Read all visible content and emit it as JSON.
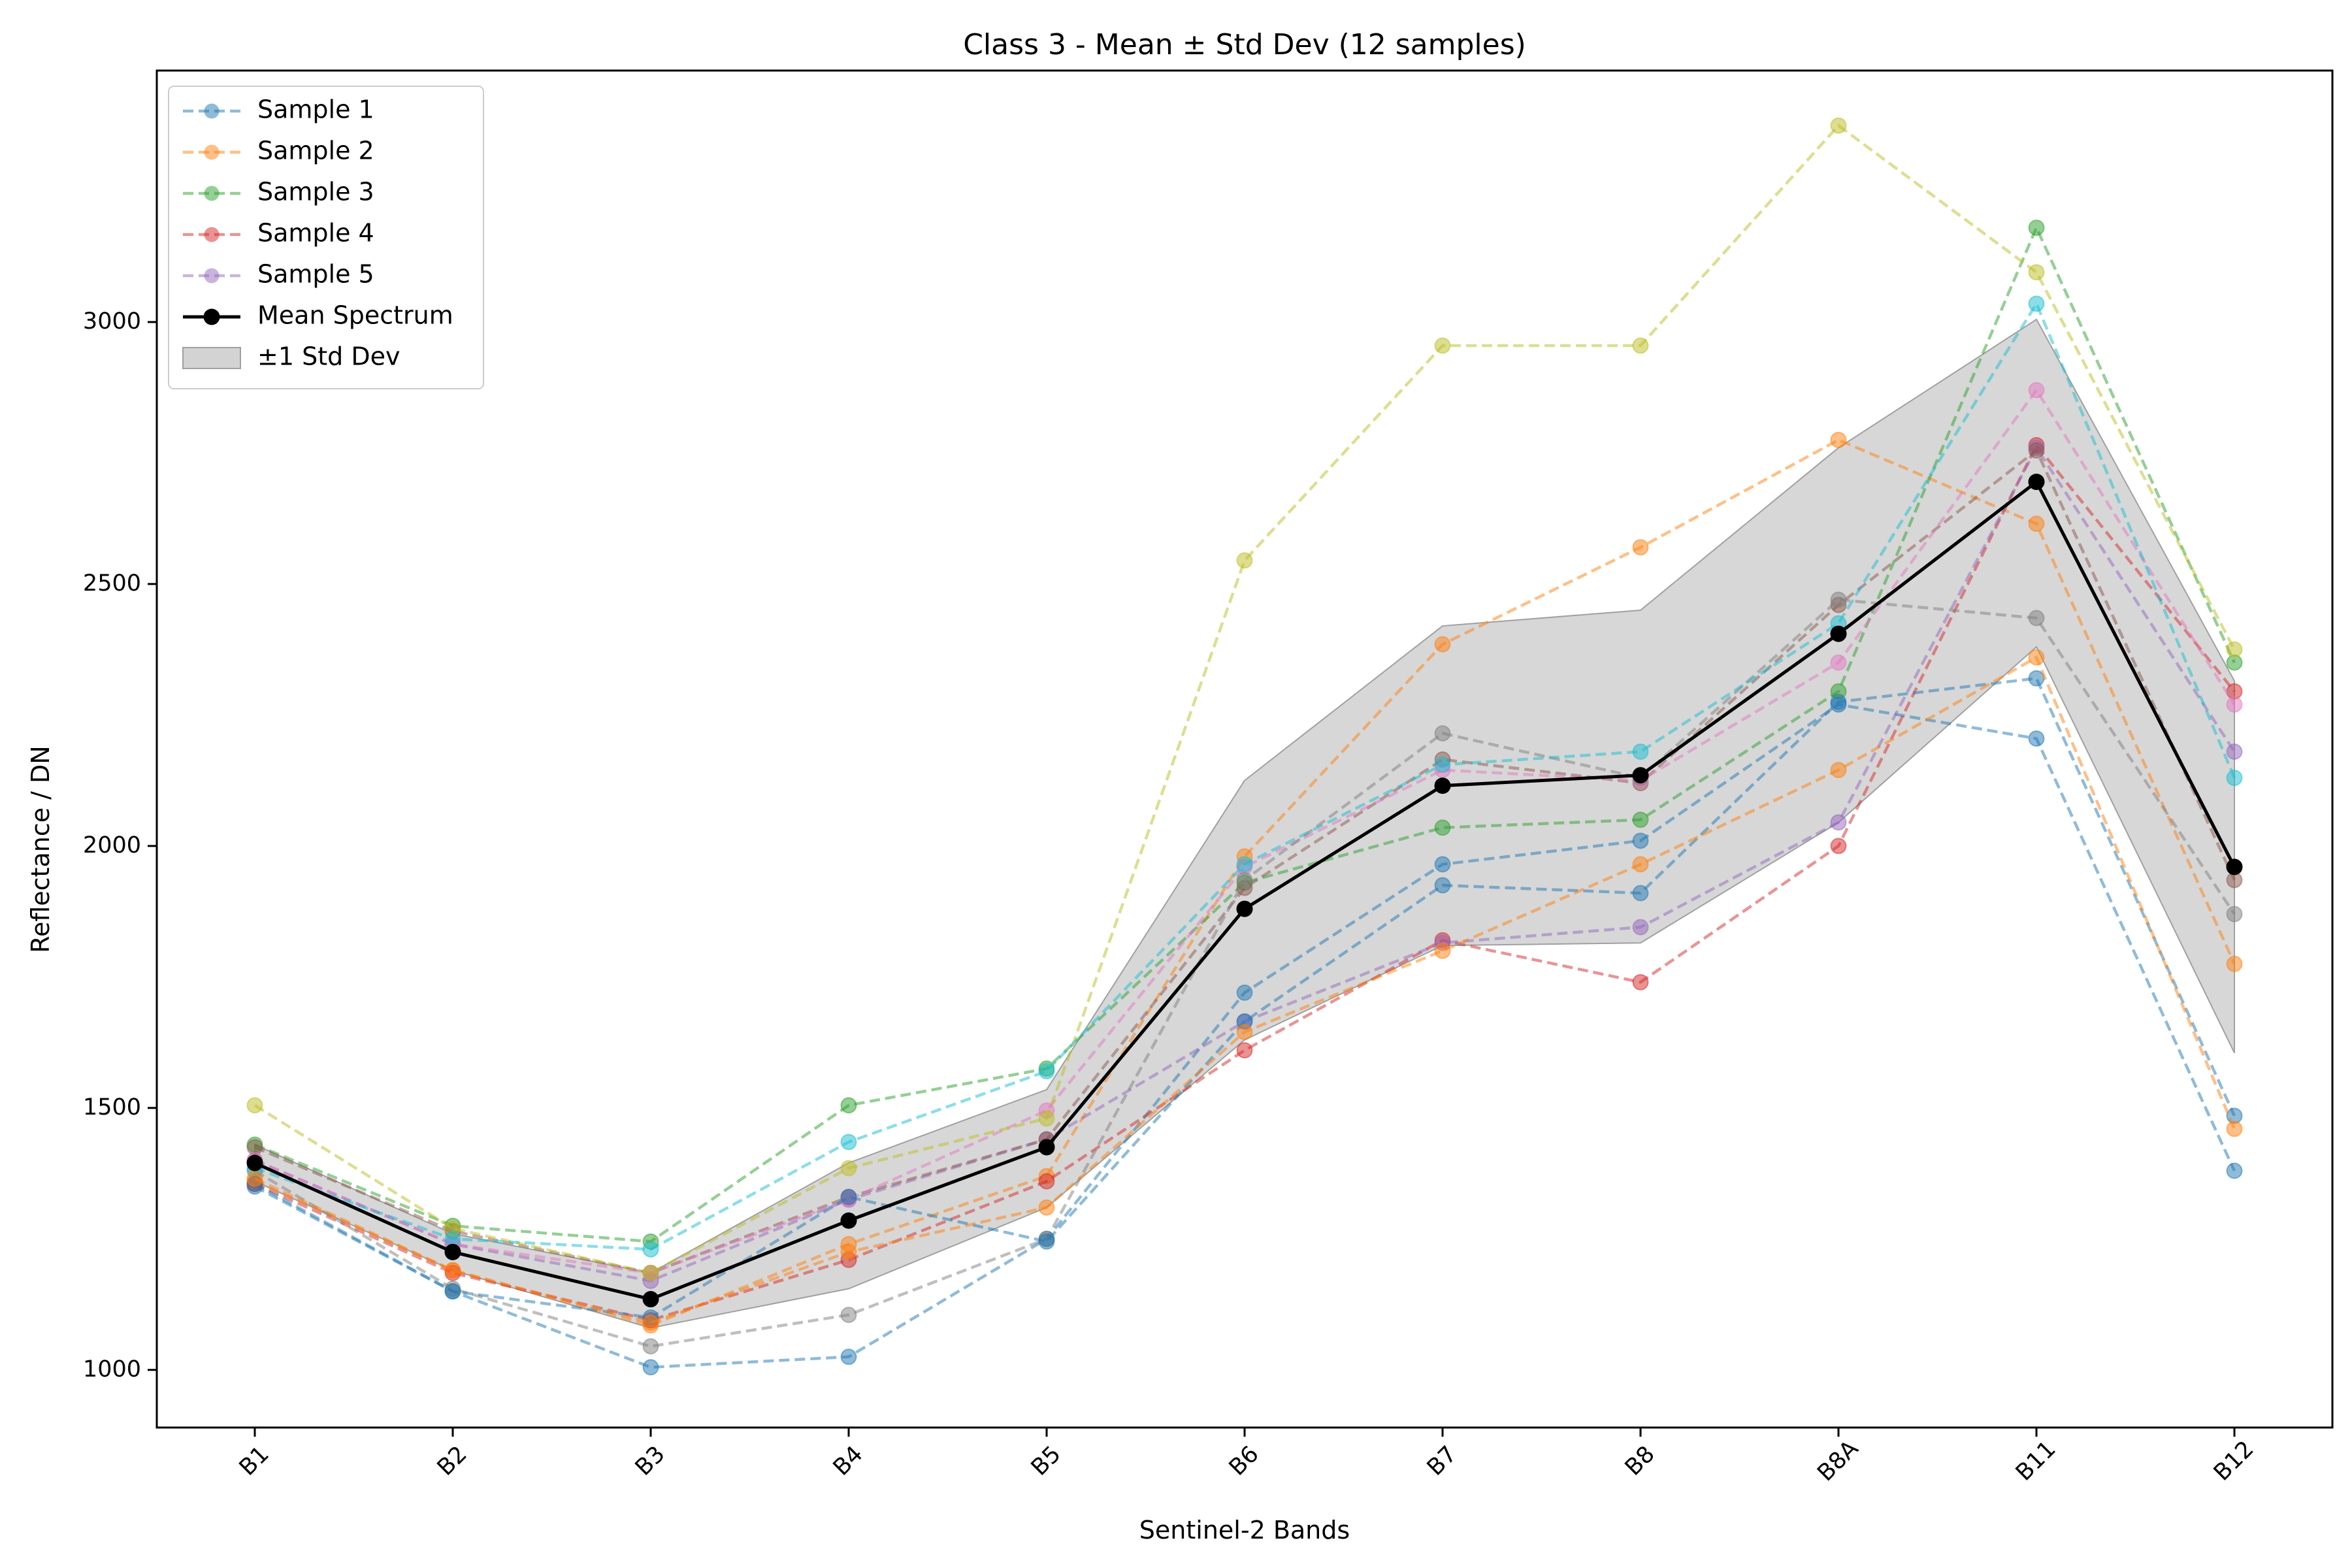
{
  "chart_data": {
    "type": "line",
    "title": "Class 3 - Mean ± Std Dev (12 samples)",
    "xlabel": "Sentinel-2 Bands",
    "ylabel": "Reflectance / DN",
    "categories": [
      "B1",
      "B2",
      "B3",
      "B4",
      "B5",
      "B6",
      "B7",
      "B8",
      "B8A",
      "B11",
      "B12"
    ],
    "yticks": [
      "1000",
      "1500",
      "2000",
      "2500",
      "3000"
    ],
    "ylim": [
      890,
      3480
    ],
    "grid": false,
    "legend_position": "top-left",
    "series": [
      {
        "name": "Sample 1",
        "color": "#1f77b4",
        "values": [
          1350,
          1150,
          1005,
          1025,
          1250,
          1720,
          1965,
          2010,
          2270,
          2205,
          1380
        ]
      },
      {
        "name": "Sample 2",
        "color": "#ff7f0e",
        "values": [
          1360,
          1190,
          1085,
          1240,
          1370,
          1980,
          2385,
          2570,
          2775,
          2615,
          1775
        ]
      },
      {
        "name": "Sample 3",
        "color": "#2ca02c",
        "values": [
          1430,
          1275,
          1245,
          1505,
          1575,
          1930,
          2035,
          2050,
          2295,
          3180,
          2350
        ]
      },
      {
        "name": "Sample 4",
        "color": "#d62728",
        "values": [
          1355,
          1185,
          1095,
          1210,
          1360,
          1610,
          1820,
          1740,
          2000,
          2765,
          2295
        ]
      },
      {
        "name": "Sample 5",
        "color": "#9467bd",
        "values": [
          1400,
          1240,
          1170,
          1325,
          1440,
          1665,
          1815,
          1845,
          2045,
          2760,
          2180
        ]
      },
      {
        "name": "",
        "color": "#8c564b",
        "values": [
          1425,
          1265,
          1185,
          1330,
          1440,
          1920,
          2165,
          2120,
          2460,
          2755,
          1935
        ]
      },
      {
        "name": "",
        "color": "#e377c2",
        "values": [
          1400,
          1240,
          1185,
          1325,
          1495,
          1960,
          2145,
          2125,
          2350,
          2870,
          2270
        ]
      },
      {
        "name": "",
        "color": "#7f7f7f",
        "values": [
          1380,
          1155,
          1045,
          1105,
          1250,
          1935,
          2215,
          2130,
          2470,
          2435,
          1870
        ]
      },
      {
        "name": "",
        "color": "#bcbd22",
        "values": [
          1505,
          1270,
          1185,
          1385,
          1480,
          2545,
          2955,
          2955,
          3375,
          3095,
          2375
        ]
      },
      {
        "name": "",
        "color": "#17becf",
        "values": [
          1385,
          1250,
          1230,
          1435,
          1570,
          1965,
          2155,
          2180,
          2425,
          3035,
          2130
        ]
      },
      {
        "name": "",
        "color": "#1f77b4",
        "values": [
          1355,
          1150,
          1100,
          1330,
          1245,
          1665,
          1925,
          1910,
          2275,
          2320,
          1485
        ]
      },
      {
        "name": "",
        "color": "#ff7f0e",
        "values": [
          1365,
          1190,
          1090,
          1225,
          1310,
          1645,
          1800,
          1965,
          2145,
          2360,
          1460
        ]
      }
    ],
    "mean": {
      "name": "Mean Spectrum",
      "color": "#000000",
      "values": [
        1395,
        1225,
        1135,
        1285,
        1425,
        1880,
        2115,
        2135,
        2405,
        2695,
        1960
      ]
    },
    "std_band": {
      "name": "±1 Std Dev",
      "color": "#d3d3d3",
      "upper": [
        1430,
        1260,
        1185,
        1395,
        1535,
        2125,
        2420,
        2450,
        2760,
        3005,
        2315
      ],
      "lower": [
        1360,
        1190,
        1080,
        1155,
        1310,
        1630,
        1810,
        1815,
        2045,
        2380,
        1605
      ]
    }
  }
}
